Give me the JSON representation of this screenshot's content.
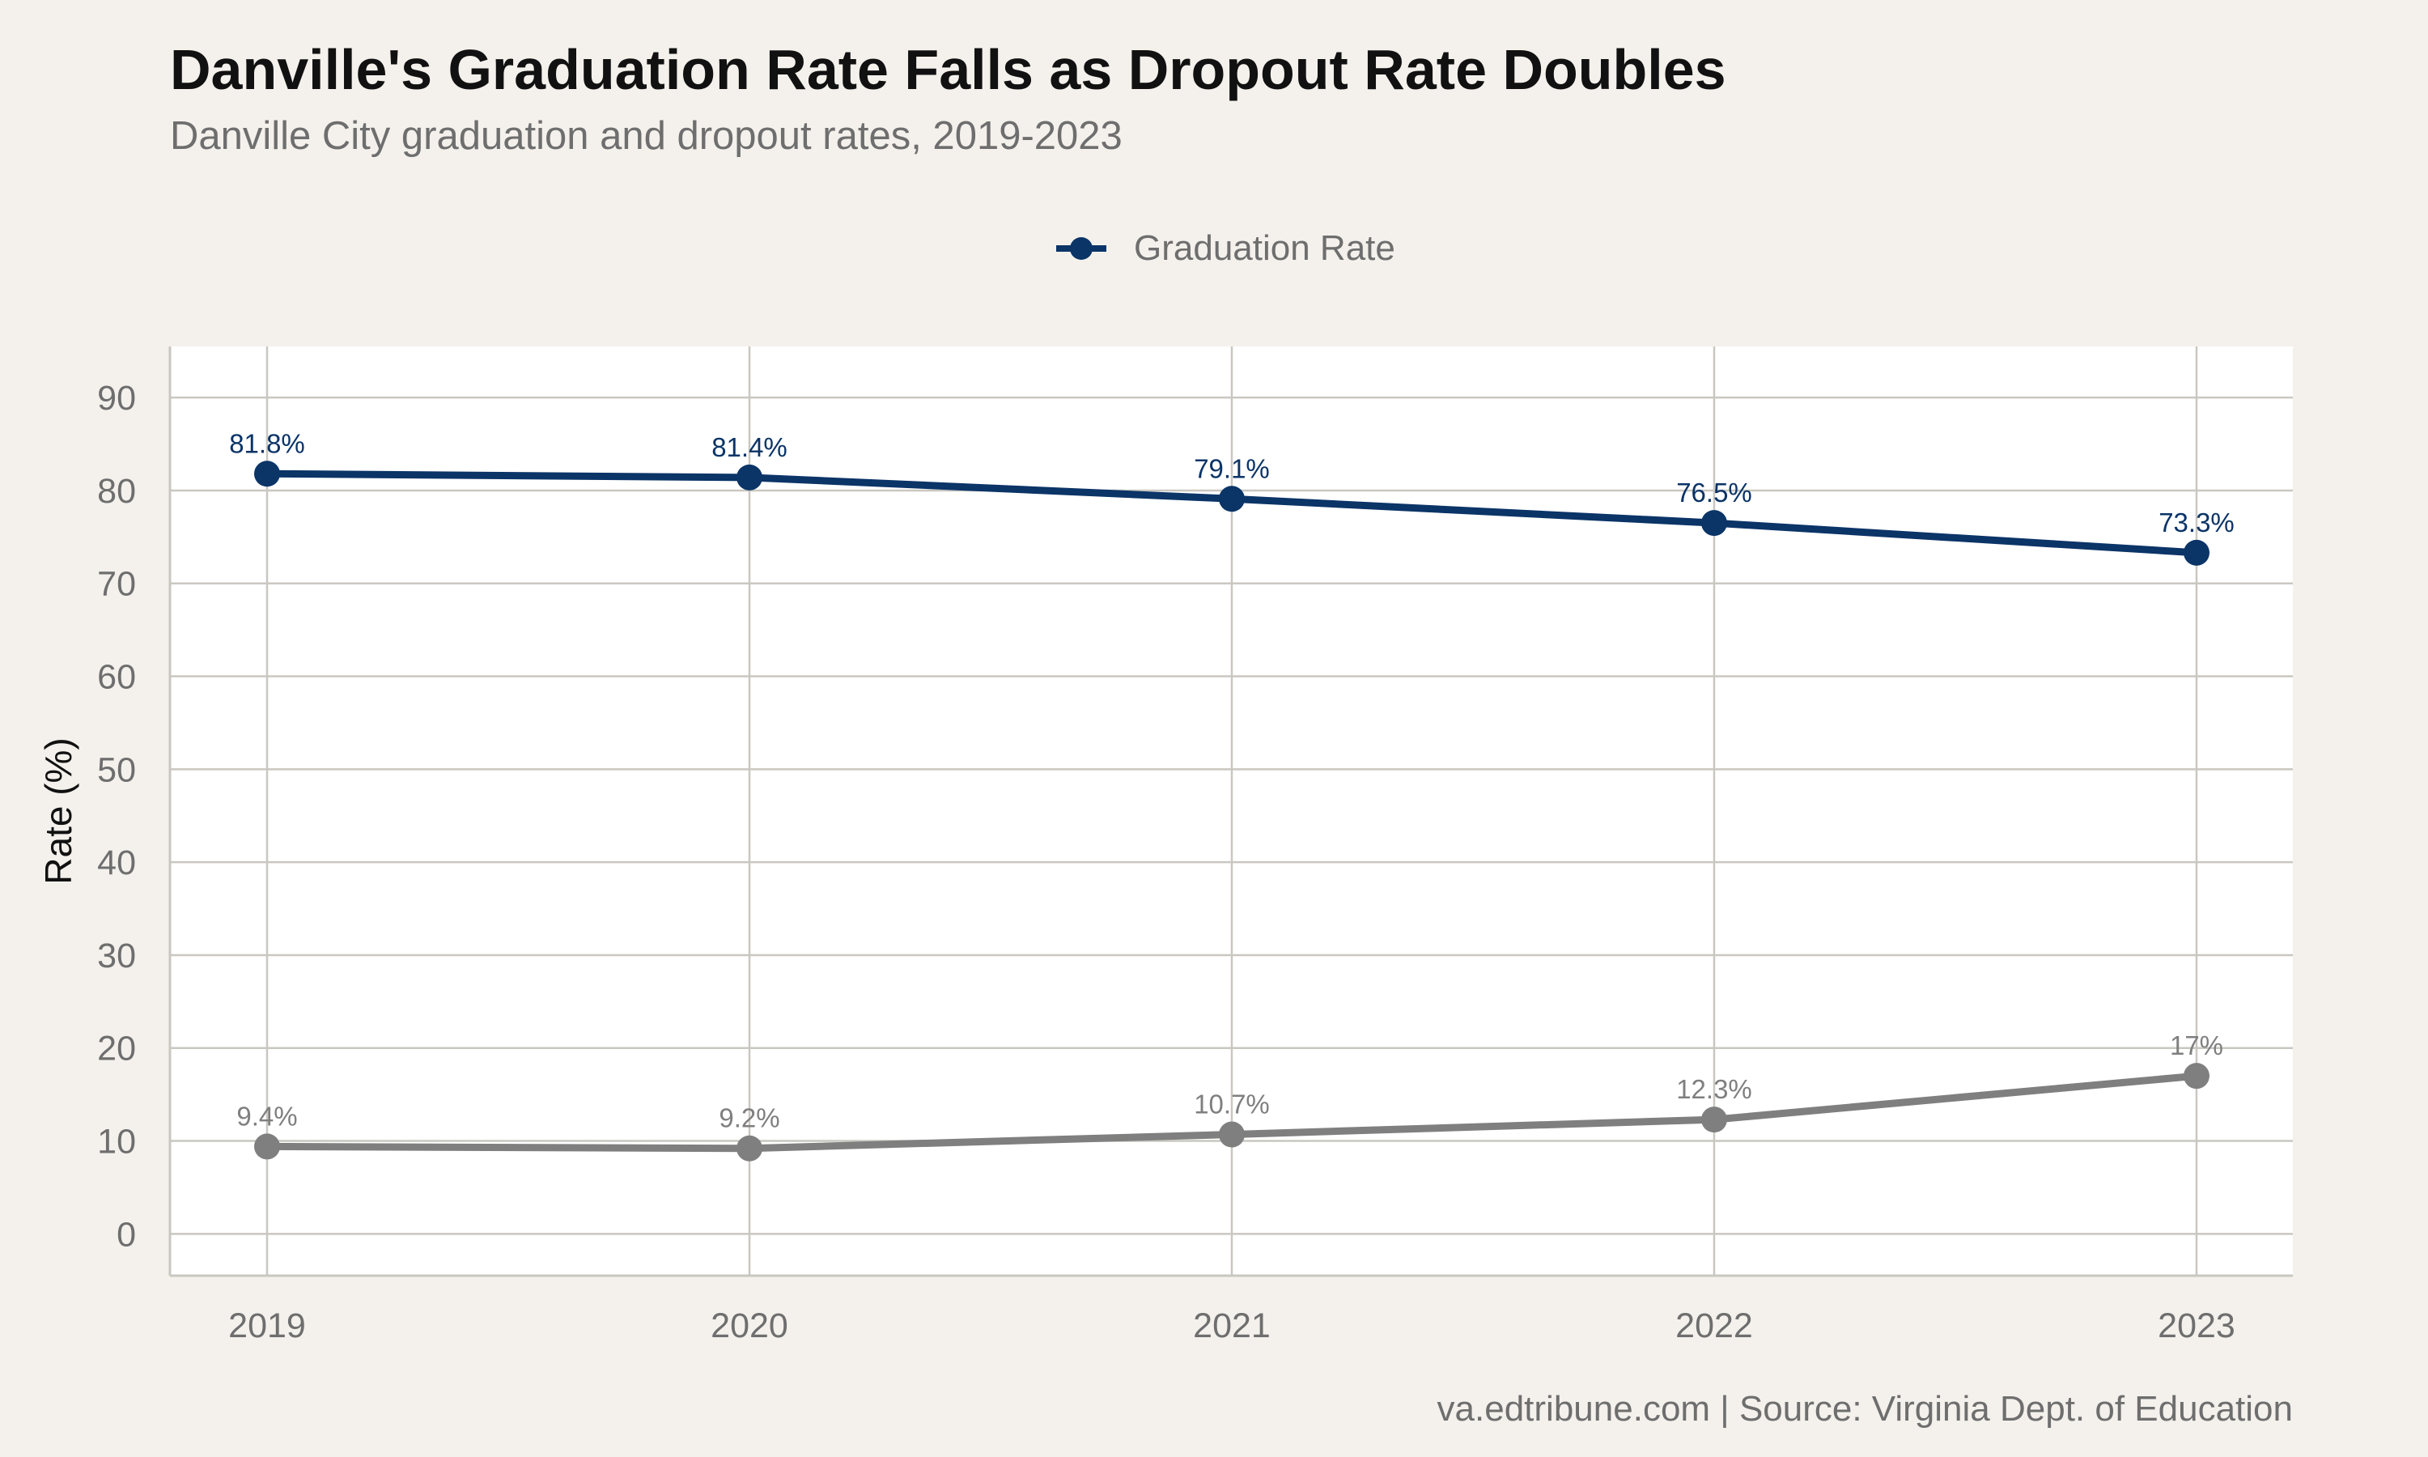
{
  "title": "Danville's Graduation Rate Falls as Dropout Rate Doubles",
  "subtitle": "Danville City graduation and dropout rates, 2019-2023",
  "caption": "va.edtribune.com | Source: Virginia Dept. of Education",
  "legend": {
    "label": "Graduation Rate",
    "placement": "top-center"
  },
  "colors": {
    "background": "#f4f1ec",
    "panel": "#ffffff",
    "grid": "#c9c7c0",
    "graduation": "#0b3467",
    "dropout": "#7f7f7f"
  },
  "chart_data": {
    "type": "line",
    "title": "Danville's Graduation Rate Falls as Dropout Rate Doubles",
    "subtitle": "Danville City graduation and dropout rates, 2019-2023",
    "xlabel": "",
    "ylabel": "Rate (%)",
    "x": [
      "2019",
      "2020",
      "2021",
      "2022",
      "2023"
    ],
    "yticks": [
      0,
      10,
      20,
      30,
      40,
      50,
      60,
      70,
      80,
      90
    ],
    "ylim": [
      -4.5,
      95.5
    ],
    "grid": true,
    "series": [
      {
        "name": "Graduation Rate",
        "color": "#0b3467",
        "values": [
          81.8,
          81.4,
          79.1,
          76.5,
          73.3
        ],
        "labels": [
          "81.8%",
          "81.4%",
          "79.1%",
          "76.5%",
          "73.3%"
        ]
      },
      {
        "color": "#7f7f7f",
        "values": [
          9.4,
          9.2,
          10.7,
          12.3,
          17
        ],
        "labels": [
          "9.4%",
          "9.2%",
          "10.7%",
          "12.3%",
          "17%"
        ]
      }
    ]
  }
}
